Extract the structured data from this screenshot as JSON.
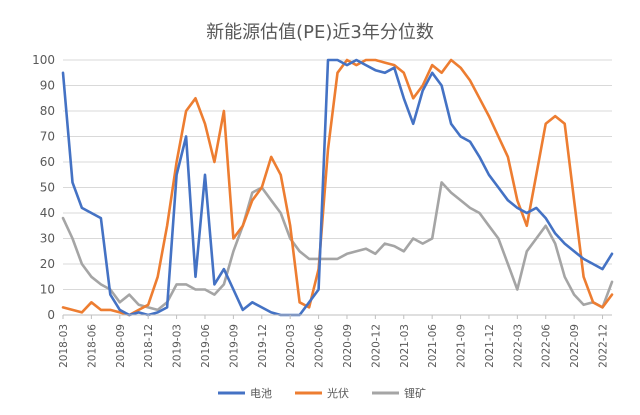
{
  "chart_data": {
    "type": "line",
    "title": "新能源估值(PE)近3年分位数",
    "xlabel": "",
    "ylabel": "",
    "ylim": [
      0,
      100
    ],
    "yticks": [
      0,
      10,
      20,
      30,
      40,
      50,
      60,
      70,
      80,
      90,
      100
    ],
    "grid": true,
    "legend": "bottom",
    "x": [
      "2018-03",
      "2018-04",
      "2018-05",
      "2018-06",
      "2018-07",
      "2018-08",
      "2018-09",
      "2018-10",
      "2018-11",
      "2018-12",
      "2019-01",
      "2019-02",
      "2019-03",
      "2019-04",
      "2019-05",
      "2019-06",
      "2019-07",
      "2019-08",
      "2019-09",
      "2019-10",
      "2019-11",
      "2019-12",
      "2020-01",
      "2020-02",
      "2020-03",
      "2020-04",
      "2020-05",
      "2020-06",
      "2020-07",
      "2020-08",
      "2020-09",
      "2020-10",
      "2020-11",
      "2020-12",
      "2021-01",
      "2021-02",
      "2021-03",
      "2021-04",
      "2021-05",
      "2021-06",
      "2021-07",
      "2021-08",
      "2021-09",
      "2021-10",
      "2021-11",
      "2021-12",
      "2022-01",
      "2022-02",
      "2022-03",
      "2022-04",
      "2022-05",
      "2022-06",
      "2022-07",
      "2022-08",
      "2022-09",
      "2022-10",
      "2022-11",
      "2022-12",
      "2023-01"
    ],
    "xticks": [
      "2018-03",
      "2018-06",
      "2018-09",
      "2018-12",
      "2019-03",
      "2019-06",
      "2019-09",
      "2019-12",
      "2020-03",
      "2020-06",
      "2020-09",
      "2020-12",
      "2021-03",
      "2021-06",
      "2021-09",
      "2021-12",
      "2022-03",
      "2022-06",
      "2022-09",
      "2022-12"
    ],
    "series": [
      {
        "name": "电池",
        "color": "#4472C4",
        "values": [
          95,
          52,
          42,
          40,
          38,
          8,
          2,
          0,
          1,
          0,
          1,
          3,
          55,
          70,
          15,
          55,
          12,
          18,
          10,
          2,
          5,
          3,
          1,
          0,
          0,
          0,
          5,
          10,
          100,
          100,
          98,
          100,
          98,
          96,
          95,
          97,
          85,
          75,
          88,
          95,
          90,
          75,
          70,
          68,
          62,
          55,
          50,
          45,
          42,
          40,
          42,
          38,
          32,
          28,
          25,
          22,
          20,
          18,
          24
        ]
      },
      {
        "name": "光伏",
        "color": "#ED7D31",
        "values": [
          3,
          2,
          1,
          5,
          2,
          2,
          1,
          0,
          2,
          4,
          15,
          35,
          60,
          80,
          85,
          75,
          60,
          80,
          30,
          35,
          45,
          50,
          62,
          55,
          35,
          5,
          3,
          18,
          65,
          95,
          100,
          98,
          100,
          100,
          99,
          98,
          95,
          85,
          90,
          98,
          95,
          100,
          97,
          92,
          85,
          78,
          70,
          62,
          45,
          35,
          55,
          75,
          78,
          75,
          45,
          15,
          5,
          3,
          8
        ]
      },
      {
        "name": "锂矿",
        "color": "#A5A5A5",
        "values": [
          38,
          30,
          20,
          15,
          12,
          10,
          5,
          8,
          4,
          3,
          2,
          5,
          12,
          12,
          10,
          10,
          8,
          12,
          25,
          35,
          48,
          50,
          45,
          40,
          30,
          25,
          22,
          22,
          22,
          22,
          24,
          25,
          26,
          24,
          28,
          27,
          25,
          30,
          28,
          30,
          52,
          48,
          45,
          42,
          40,
          35,
          30,
          20,
          10,
          25,
          30,
          35,
          28,
          15,
          8,
          4,
          5,
          3,
          13
        ]
      }
    ]
  },
  "legend": {
    "items": [
      {
        "label": "电池",
        "color": "#4472C4"
      },
      {
        "label": "光伏",
        "color": "#ED7D31"
      },
      {
        "label": "锂矿",
        "color": "#A5A5A5"
      }
    ]
  }
}
